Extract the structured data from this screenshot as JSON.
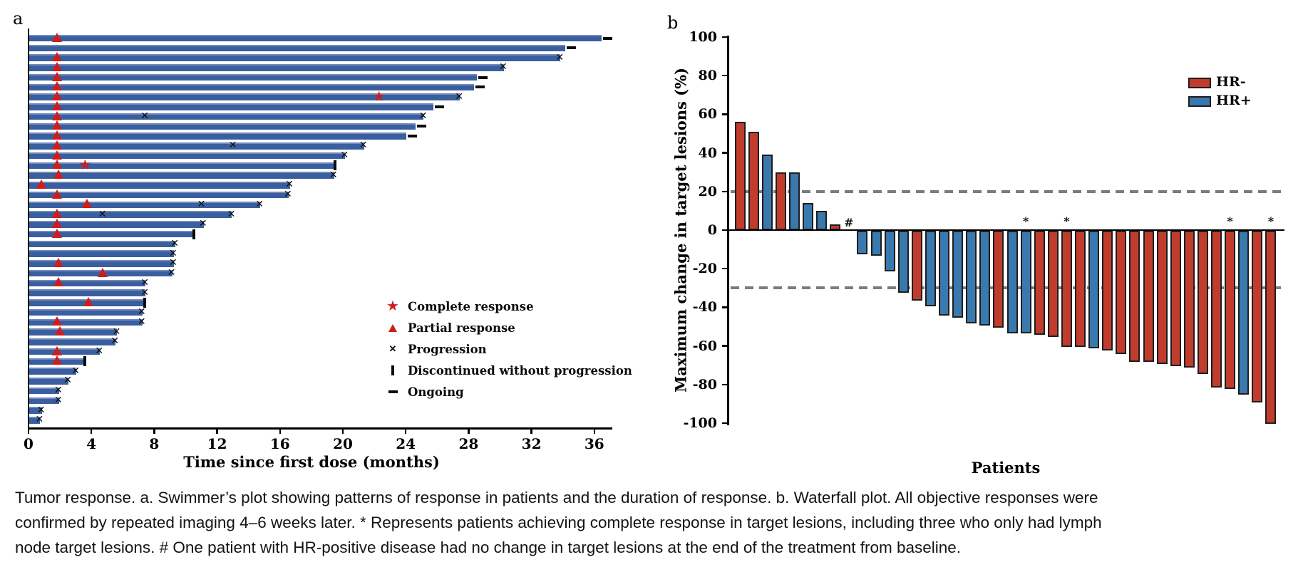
{
  "colors": {
    "swimmer_bar": "#3a5f9f",
    "swimmer_bar_highlight": "#7189bd",
    "hr_neg": "#c23c2d",
    "hr_pos": "#3a79ae",
    "marker_red": "#cf1d1d",
    "marker_black": "#0a0a0a",
    "dash_gray": "#7b7b7b"
  },
  "caption": {
    "lines": [
      "Tumor response. a. Swimmer’s plot showing patterns of response in patients and the duration of response. b. Waterfall plot. All objective responses were",
      "confirmed by repeated imaging 4–6 weeks later. * Represents patients achieving complete response in target lesions, including three who only had lymph",
      "node target lesions. # One patient with HR-positive disease had no change in target lesions at the end of the treatment from baseline."
    ]
  },
  "chart_data": [
    {
      "type": "bar",
      "subtype": "swimmer",
      "panel": "a",
      "xlabel": "Time since first dose (months)",
      "xlim": [
        0,
        37
      ],
      "x_ticks": [
        0,
        4,
        8,
        12,
        16,
        20,
        24,
        28,
        32,
        36
      ],
      "legend": [
        {
          "icon": "red-star",
          "label": "Complete response"
        },
        {
          "icon": "red-triangle",
          "label": "Partial response"
        },
        {
          "icon": "black-x",
          "label": "Progression"
        },
        {
          "icon": "vertical-bar",
          "label": "Discontinued without progression"
        },
        {
          "icon": "dash",
          "label": "Ongoing"
        }
      ],
      "patients": [
        {
          "months": 36.4,
          "end": "ongoing",
          "pr": 1.8
        },
        {
          "months": 34.1,
          "end": "ongoing"
        },
        {
          "months": 33.8,
          "end": "progression",
          "pr": 1.8
        },
        {
          "months": 30.2,
          "end": "progression",
          "pr": 1.8
        },
        {
          "months": 28.5,
          "end": "ongoing",
          "pr": 1.8
        },
        {
          "months": 28.3,
          "end": "ongoing",
          "pr": 1.8
        },
        {
          "months": 27.4,
          "end": "progression",
          "pr": 1.8,
          "cr": 22.3
        },
        {
          "months": 25.7,
          "end": "ongoing",
          "pr": 1.8
        },
        {
          "months": 25.1,
          "end": "progression",
          "pr": 1.8,
          "prog": [
            7.4
          ]
        },
        {
          "months": 24.6,
          "end": "ongoing",
          "pr": 1.8
        },
        {
          "months": 24.0,
          "end": "ongoing",
          "pr": 1.8
        },
        {
          "months": 21.3,
          "end": "progression",
          "pr": 1.8,
          "prog": [
            13.0
          ]
        },
        {
          "months": 20.1,
          "end": "progression",
          "pr": 1.8
        },
        {
          "months": 19.5,
          "end": "discontinued",
          "pr": 1.8,
          "cr": 3.6
        },
        {
          "months": 19.4,
          "end": "progression",
          "pr": 1.9
        },
        {
          "months": 16.6,
          "end": "progression",
          "pr": 0.8
        },
        {
          "months": 16.5,
          "end": "progression",
          "pr": 1.8
        },
        {
          "months": 14.7,
          "end": "progression",
          "pr": 3.7,
          "prog": [
            11.0
          ]
        },
        {
          "months": 12.9,
          "end": "progression",
          "pr": 1.8,
          "prog": [
            4.7
          ]
        },
        {
          "months": 11.1,
          "end": "progression",
          "pr": 1.8
        },
        {
          "months": 10.5,
          "end": "discontinued",
          "pr": 1.8
        },
        {
          "months": 9.3,
          "end": "progression"
        },
        {
          "months": 9.2,
          "end": "progression"
        },
        {
          "months": 9.2,
          "end": "progression",
          "pr": 1.9
        },
        {
          "months": 9.1,
          "end": "progression",
          "pr": 4.7
        },
        {
          "months": 7.4,
          "end": "progression",
          "pr": 1.9
        },
        {
          "months": 7.4,
          "end": "progression"
        },
        {
          "months": 7.4,
          "end": "discontinued",
          "pr": 3.8
        },
        {
          "months": 7.2,
          "end": "progression"
        },
        {
          "months": 7.2,
          "end": "progression",
          "pr": 1.8
        },
        {
          "months": 5.6,
          "end": "progression",
          "pr": 2.0
        },
        {
          "months": 5.5,
          "end": "progression"
        },
        {
          "months": 4.5,
          "end": "progression",
          "pr": 1.8
        },
        {
          "months": 3.6,
          "end": "discontinued",
          "pr": 1.8
        },
        {
          "months": 3.0,
          "end": "progression"
        },
        {
          "months": 2.5,
          "end": "progression"
        },
        {
          "months": 1.9,
          "end": "progression"
        },
        {
          "months": 1.9,
          "end": "progression"
        },
        {
          "months": 0.8,
          "end": "progression"
        },
        {
          "months": 0.7,
          "end": "progression"
        }
      ]
    },
    {
      "type": "bar",
      "subtype": "waterfall",
      "panel": "b",
      "ylabel": "Maximum change in target lesions (%)",
      "xlabel": "Patients",
      "ylim": [
        -100,
        100
      ],
      "y_ticks": [
        100,
        80,
        60,
        40,
        20,
        0,
        -20,
        -40,
        -60,
        -80,
        -100
      ],
      "reference_lines": [
        20,
        -30
      ],
      "legend": [
        {
          "label": "HR-",
          "color": "#c23c2d"
        },
        {
          "label": "HR+",
          "color": "#3a79ae"
        }
      ],
      "bars": [
        {
          "value": 56,
          "group": "HR-"
        },
        {
          "value": 51,
          "group": "HR-"
        },
        {
          "value": 39,
          "group": "HR+"
        },
        {
          "value": 30,
          "group": "HR-"
        },
        {
          "value": 30,
          "group": "HR+"
        },
        {
          "value": 14,
          "group": "HR+"
        },
        {
          "value": 10,
          "group": "HR+"
        },
        {
          "value": 3,
          "group": "HR-"
        },
        {
          "value": 0,
          "group": "HR+",
          "note": "#"
        },
        {
          "value": -12,
          "group": "HR+"
        },
        {
          "value": -13,
          "group": "HR+"
        },
        {
          "value": -21,
          "group": "HR+"
        },
        {
          "value": -32,
          "group": "HR+"
        },
        {
          "value": -36,
          "group": "HR-"
        },
        {
          "value": -39,
          "group": "HR+"
        },
        {
          "value": -44,
          "group": "HR+"
        },
        {
          "value": -45,
          "group": "HR+"
        },
        {
          "value": -48,
          "group": "HR+"
        },
        {
          "value": -49,
          "group": "HR+"
        },
        {
          "value": -50,
          "group": "HR-"
        },
        {
          "value": -53,
          "group": "HR+"
        },
        {
          "value": -53,
          "group": "HR+",
          "note": "*"
        },
        {
          "value": -54,
          "group": "HR-"
        },
        {
          "value": -55,
          "group": "HR-"
        },
        {
          "value": -60,
          "group": "HR-",
          "note": "*"
        },
        {
          "value": -60,
          "group": "HR-"
        },
        {
          "value": -61,
          "group": "HR+"
        },
        {
          "value": -62,
          "group": "HR-"
        },
        {
          "value": -64,
          "group": "HR-"
        },
        {
          "value": -68,
          "group": "HR-"
        },
        {
          "value": -68,
          "group": "HR-"
        },
        {
          "value": -69,
          "group": "HR-"
        },
        {
          "value": -70,
          "group": "HR-"
        },
        {
          "value": -71,
          "group": "HR-"
        },
        {
          "value": -74,
          "group": "HR-"
        },
        {
          "value": -81,
          "group": "HR-"
        },
        {
          "value": -82,
          "group": "HR-",
          "note": "*"
        },
        {
          "value": -85,
          "group": "HR+"
        },
        {
          "value": -89,
          "group": "HR-"
        },
        {
          "value": -100,
          "group": "HR-",
          "note": "*"
        }
      ]
    }
  ]
}
